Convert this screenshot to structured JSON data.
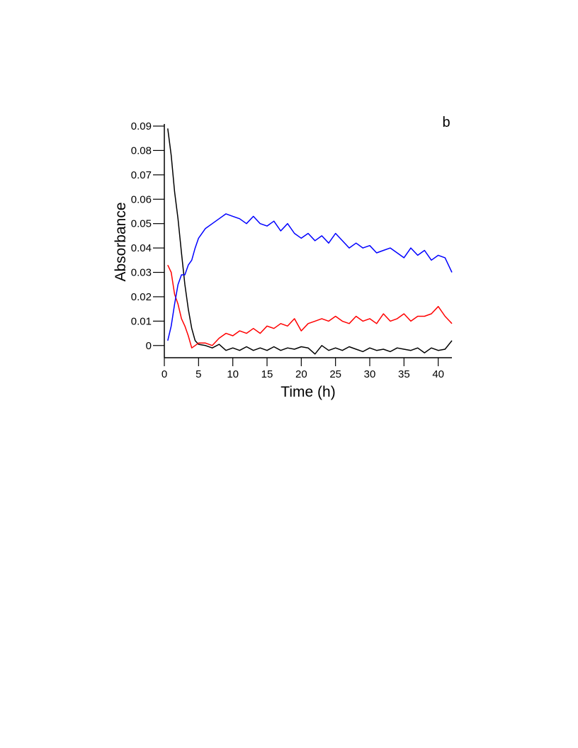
{
  "chart_data": {
    "type": "line",
    "title": "",
    "panel_label": "b",
    "xlabel": "Time (h)",
    "ylabel": "Absorbance",
    "xlim": [
      0,
      42
    ],
    "ylim": [
      -0.005,
      0.09
    ],
    "x_ticks": [
      0,
      5,
      10,
      15,
      20,
      25,
      30,
      35,
      40
    ],
    "y_ticks": [
      0,
      0.01,
      0.02,
      0.03,
      0.04,
      0.05,
      0.06,
      0.07,
      0.08,
      0.09
    ],
    "y_tick_labels": [
      "0",
      "0.01",
      "0.02",
      "0.03",
      "0.04",
      "0.05",
      "0.06",
      "0.07",
      "0.08",
      "0.09"
    ],
    "grid": false,
    "legend": "none",
    "series": [
      {
        "color": "#000000",
        "x": [
          0.5,
          1,
          1.5,
          2,
          2.5,
          3,
          3.5,
          4,
          4.5,
          5,
          6,
          7,
          8,
          9,
          10,
          11,
          12,
          13,
          14,
          15,
          16,
          17,
          18,
          19,
          20,
          21,
          22,
          23,
          24,
          25,
          26,
          27,
          28,
          29,
          30,
          31,
          32,
          33,
          34,
          35,
          36,
          37,
          38,
          39,
          40,
          41,
          42
        ],
        "values": [
          0.089,
          0.078,
          0.063,
          0.052,
          0.038,
          0.025,
          0.015,
          0.007,
          0.002,
          0.0005,
          0.0,
          -0.001,
          0.0005,
          -0.002,
          -0.001,
          -0.002,
          -0.0005,
          -0.002,
          -0.001,
          -0.002,
          -0.0005,
          -0.002,
          -0.001,
          -0.0015,
          -0.0005,
          -0.001,
          -0.0035,
          0.0,
          -0.002,
          -0.001,
          -0.002,
          -0.0005,
          -0.0015,
          -0.0025,
          -0.001,
          -0.002,
          -0.0015,
          -0.0025,
          -0.001,
          -0.0015,
          -0.002,
          -0.001,
          -0.003,
          -0.001,
          -0.002,
          -0.0015,
          0.002
        ]
      },
      {
        "color": "#ff0000",
        "x": [
          0.5,
          1,
          1.5,
          2,
          2.5,
          3,
          3.5,
          4,
          4.5,
          5,
          6,
          7,
          8,
          9,
          10,
          11,
          12,
          13,
          14,
          15,
          16,
          17,
          18,
          19,
          20,
          21,
          22,
          23,
          24,
          25,
          26,
          27,
          28,
          29,
          30,
          31,
          32,
          33,
          34,
          35,
          36,
          37,
          38,
          39,
          40,
          41,
          42
        ],
        "values": [
          0.033,
          0.03,
          0.021,
          0.017,
          0.011,
          0.008,
          0.004,
          -0.001,
          0.0,
          0.001,
          0.001,
          0.0,
          0.003,
          0.005,
          0.004,
          0.006,
          0.005,
          0.007,
          0.005,
          0.008,
          0.007,
          0.009,
          0.008,
          0.011,
          0.006,
          0.009,
          0.01,
          0.011,
          0.01,
          0.012,
          0.01,
          0.009,
          0.012,
          0.01,
          0.011,
          0.009,
          0.013,
          0.01,
          0.011,
          0.013,
          0.01,
          0.012,
          0.012,
          0.013,
          0.016,
          0.012,
          0.009
        ]
      },
      {
        "color": "#0000ff",
        "x": [
          0.5,
          1,
          1.5,
          2,
          2.5,
          3,
          3.5,
          4,
          4.5,
          5,
          6,
          7,
          8,
          9,
          10,
          11,
          12,
          13,
          14,
          15,
          16,
          17,
          18,
          19,
          20,
          21,
          22,
          23,
          24,
          25,
          26,
          27,
          28,
          29,
          30,
          31,
          32,
          33,
          34,
          35,
          36,
          37,
          38,
          39,
          40,
          41,
          42
        ],
        "values": [
          0.002,
          0.008,
          0.017,
          0.025,
          0.029,
          0.029,
          0.033,
          0.035,
          0.04,
          0.044,
          0.048,
          0.05,
          0.052,
          0.054,
          0.053,
          0.052,
          0.05,
          0.053,
          0.05,
          0.049,
          0.051,
          0.047,
          0.05,
          0.046,
          0.044,
          0.046,
          0.043,
          0.045,
          0.042,
          0.046,
          0.043,
          0.04,
          0.042,
          0.04,
          0.041,
          0.038,
          0.039,
          0.04,
          0.038,
          0.036,
          0.04,
          0.037,
          0.039,
          0.035,
          0.037,
          0.036,
          0.03
        ]
      }
    ]
  }
}
